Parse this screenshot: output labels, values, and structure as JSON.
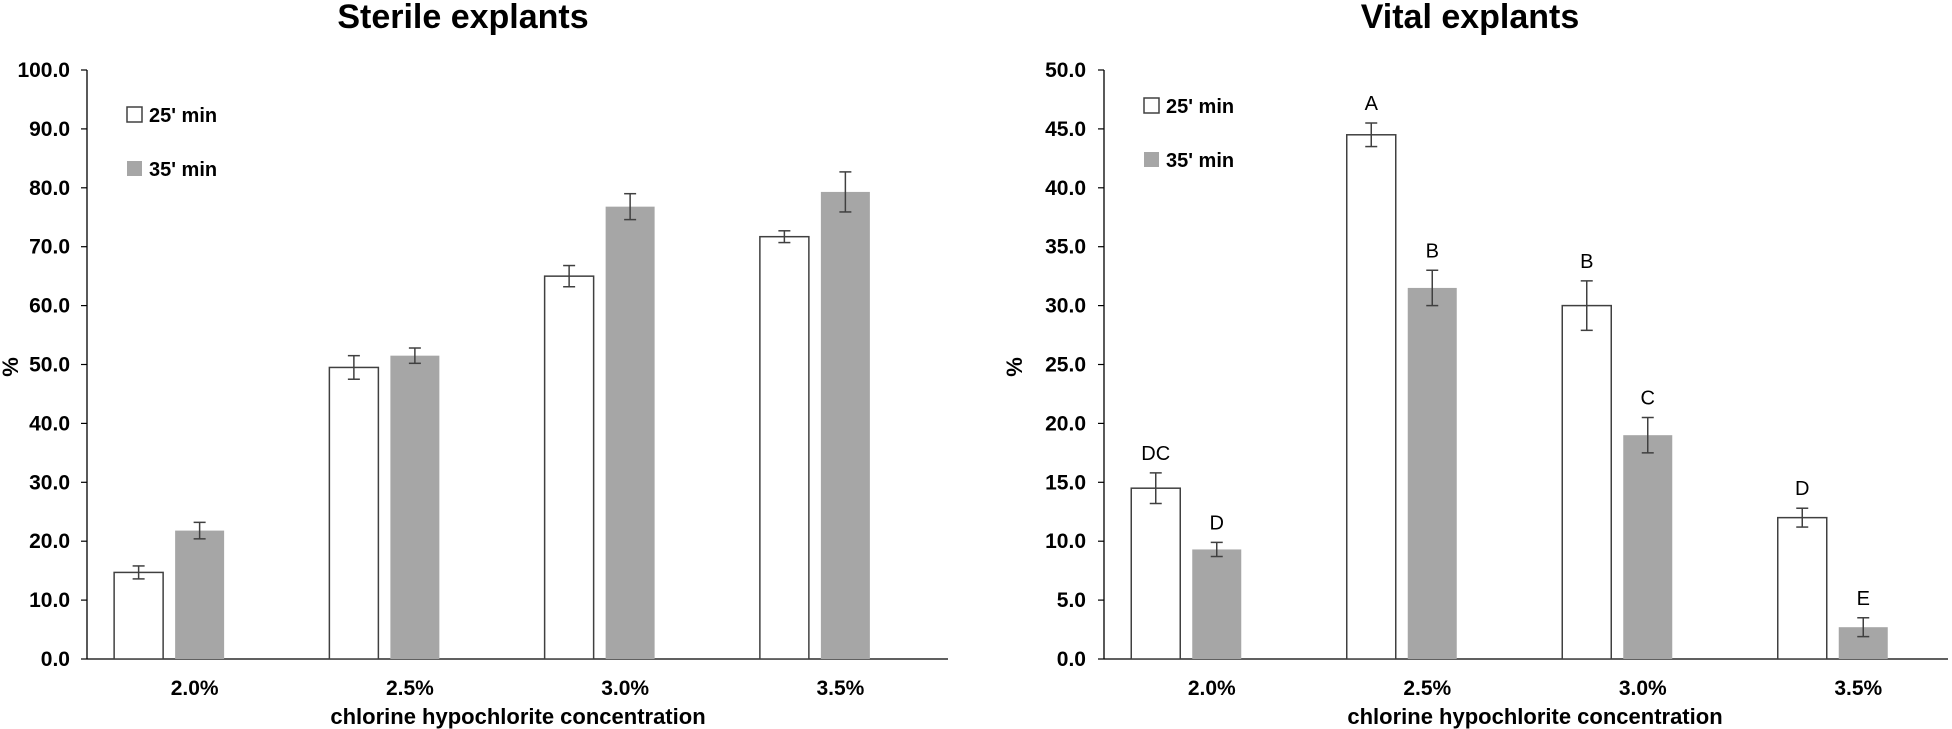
{
  "chart_data": [
    {
      "type": "bar",
      "title": "Sterile explants",
      "xlabel": "chlorine hypochlorite concentration",
      "ylabel": "%",
      "ylim": [
        0,
        100
      ],
      "yticks": [
        "0.0",
        "10.0",
        "20.0",
        "30.0",
        "40.0",
        "50.0",
        "60.0",
        "70.0",
        "80.0",
        "90.0",
        "100.0"
      ],
      "categories": [
        "2.0%",
        "2.5%",
        "3.0%",
        "3.5%"
      ],
      "legend": [
        "25' min",
        "35' min"
      ],
      "colors": {
        "series1_fill": "#ffffff",
        "series1_stroke": "#404040",
        "series2_fill": "#a6a6a6",
        "axis": "#000000"
      },
      "series": [
        {
          "name": "25' min",
          "values": [
            14.7,
            49.5,
            65.0,
            71.7
          ],
          "errors": [
            1.1,
            2.0,
            1.8,
            1.0
          ],
          "letters": [
            "",
            "",
            "",
            ""
          ]
        },
        {
          "name": "35' min",
          "values": [
            21.8,
            51.5,
            76.8,
            79.3
          ],
          "errors": [
            1.4,
            1.3,
            2.2,
            3.4
          ],
          "letters": [
            "",
            "",
            "",
            ""
          ]
        }
      ]
    },
    {
      "type": "bar",
      "title": "Vital explants",
      "xlabel": "chlorine hypochlorite concentration",
      "ylabel": "%",
      "ylim": [
        0,
        50
      ],
      "yticks": [
        "0.0",
        "5.0",
        "10.0",
        "15.0",
        "20.0",
        "25.0",
        "30.0",
        "35.0",
        "40.0",
        "45.0",
        "50.0"
      ],
      "categories": [
        "2.0%",
        "2.5%",
        "3.0%",
        "3.5%"
      ],
      "legend": [
        "25' min",
        "35' min"
      ],
      "colors": {
        "series1_fill": "#ffffff",
        "series1_stroke": "#404040",
        "series2_fill": "#a6a6a6",
        "axis": "#000000"
      },
      "series": [
        {
          "name": "25' min",
          "values": [
            14.5,
            44.5,
            30.0,
            12.0
          ],
          "errors": [
            1.3,
            1.0,
            2.1,
            0.8
          ],
          "letters": [
            "DC",
            "A",
            "B",
            "D"
          ]
        },
        {
          "name": "35' min",
          "values": [
            9.3,
            31.5,
            19.0,
            2.7
          ],
          "errors": [
            0.6,
            1.5,
            1.5,
            0.8
          ],
          "letters": [
            "D",
            "B",
            "C",
            "E"
          ]
        }
      ]
    }
  ]
}
